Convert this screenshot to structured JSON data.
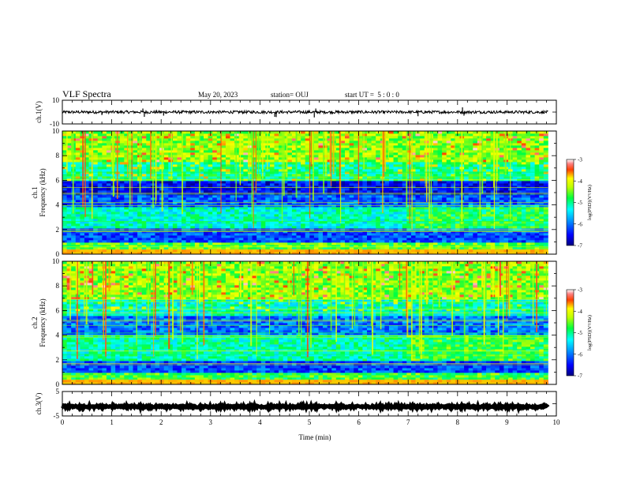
{
  "header": {
    "title": "VLF Spectra",
    "date": "May 20, 2023",
    "station": "station= OUJ",
    "start": "start UT =  5 : 0 : 0"
  },
  "colors": {
    "waveform": "#000000",
    "colormap": [
      "#00008c",
      "#0000ff",
      "#0080ff",
      "#00ffff",
      "#00ff80",
      "#80ff00",
      "#ffff00",
      "#ff8000",
      "#ff0000",
      "#ffffff"
    ]
  },
  "chart_data": [
    {
      "id": "ch1-waveform",
      "type": "line",
      "ylabel": "ch.1(V)",
      "ylim": [
        -10,
        10
      ],
      "yticks": [
        10,
        -10
      ],
      "xlim": [
        0,
        10
      ],
      "baseline": 0,
      "noise_amplitude": 1.2,
      "spikes": [
        {
          "x": 0.8,
          "y": -2.5
        },
        {
          "x": 1.63,
          "y": 3
        },
        {
          "x": 1.66,
          "y": -4
        },
        {
          "x": 2.05,
          "y": -3
        },
        {
          "x": 4.3,
          "y": -4
        },
        {
          "x": 4.33,
          "y": -4.2
        },
        {
          "x": 5.1,
          "y": -4.5
        },
        {
          "x": 5.13,
          "y": 3
        },
        {
          "x": 7.2,
          "y": -3.5
        },
        {
          "x": 8.1,
          "y": 4
        },
        {
          "x": 8.13,
          "y": -3
        }
      ]
    },
    {
      "id": "ch1-spectrogram",
      "type": "heatmap",
      "channel_label": "ch.1",
      "ylabel": "Frequency (kHz)",
      "ylim": [
        0,
        10
      ],
      "yticks": [
        0,
        2,
        4,
        6,
        8,
        10
      ],
      "xlim": [
        0,
        10
      ],
      "data_end_min": 9.83,
      "colorbar": {
        "label": "log(PSD)(V²/Hz)",
        "range": [
          -7,
          -3
        ],
        "ticks": [
          -3,
          -4,
          -5,
          -6,
          -7
        ]
      },
      "bands": [
        {
          "f_low": 0,
          "f_high": 0.3,
          "level": -3.8
        },
        {
          "f_low": 0.3,
          "f_high": 1.0,
          "level": -4.6
        },
        {
          "f_low": 1.0,
          "f_high": 2.2,
          "level": -6.2
        },
        {
          "f_low": 2.2,
          "f_high": 3.8,
          "level": -5.2
        },
        {
          "f_low": 3.8,
          "f_high": 4.8,
          "level": -6.1
        },
        {
          "f_low": 4.8,
          "f_high": 6.0,
          "level": -6.5
        },
        {
          "f_low": 6.0,
          "f_high": 7.5,
          "level": -5.0
        },
        {
          "f_low": 7.5,
          "f_high": 10,
          "level": -4.4
        }
      ]
    },
    {
      "id": "ch2-spectrogram",
      "type": "heatmap",
      "channel_label": "ch.2",
      "ylabel": "Frequency (kHz)",
      "ylim": [
        0,
        10
      ],
      "yticks": [
        0,
        2,
        4,
        6,
        8,
        10
      ],
      "xlim": [
        0,
        10
      ],
      "data_end_min": 9.83,
      "colorbar": {
        "label": "log(PSD)(V²/Hz)",
        "range": [
          -7,
          -3
        ],
        "ticks": [
          -3,
          -4,
          -5,
          -6,
          -7
        ]
      },
      "bands": [
        {
          "f_low": 0,
          "f_high": 0.3,
          "level": -3.8
        },
        {
          "f_low": 0.3,
          "f_high": 1.0,
          "level": -4.7
        },
        {
          "f_low": 1.0,
          "f_high": 2.0,
          "level": -6.2
        },
        {
          "f_low": 2.0,
          "f_high": 4.0,
          "level": -5.1
        },
        {
          "f_low": 4.0,
          "f_high": 5.5,
          "level": -6.0
        },
        {
          "f_low": 5.5,
          "f_high": 7.0,
          "level": -5.2
        },
        {
          "f_low": 7.0,
          "f_high": 10,
          "level": -4.4
        }
      ]
    },
    {
      "id": "ch3-waveform",
      "type": "line",
      "ylabel": "ch.3(V)",
      "ylim": [
        -5,
        5
      ],
      "yticks": [
        5,
        -5
      ],
      "xlim": [
        0,
        10
      ],
      "baseline": -1.2,
      "noise_amplitude": 0.4,
      "xlabel": "Time (min)",
      "xticks": [
        0,
        1,
        2,
        3,
        4,
        5,
        6,
        7,
        8,
        9,
        10
      ]
    }
  ]
}
